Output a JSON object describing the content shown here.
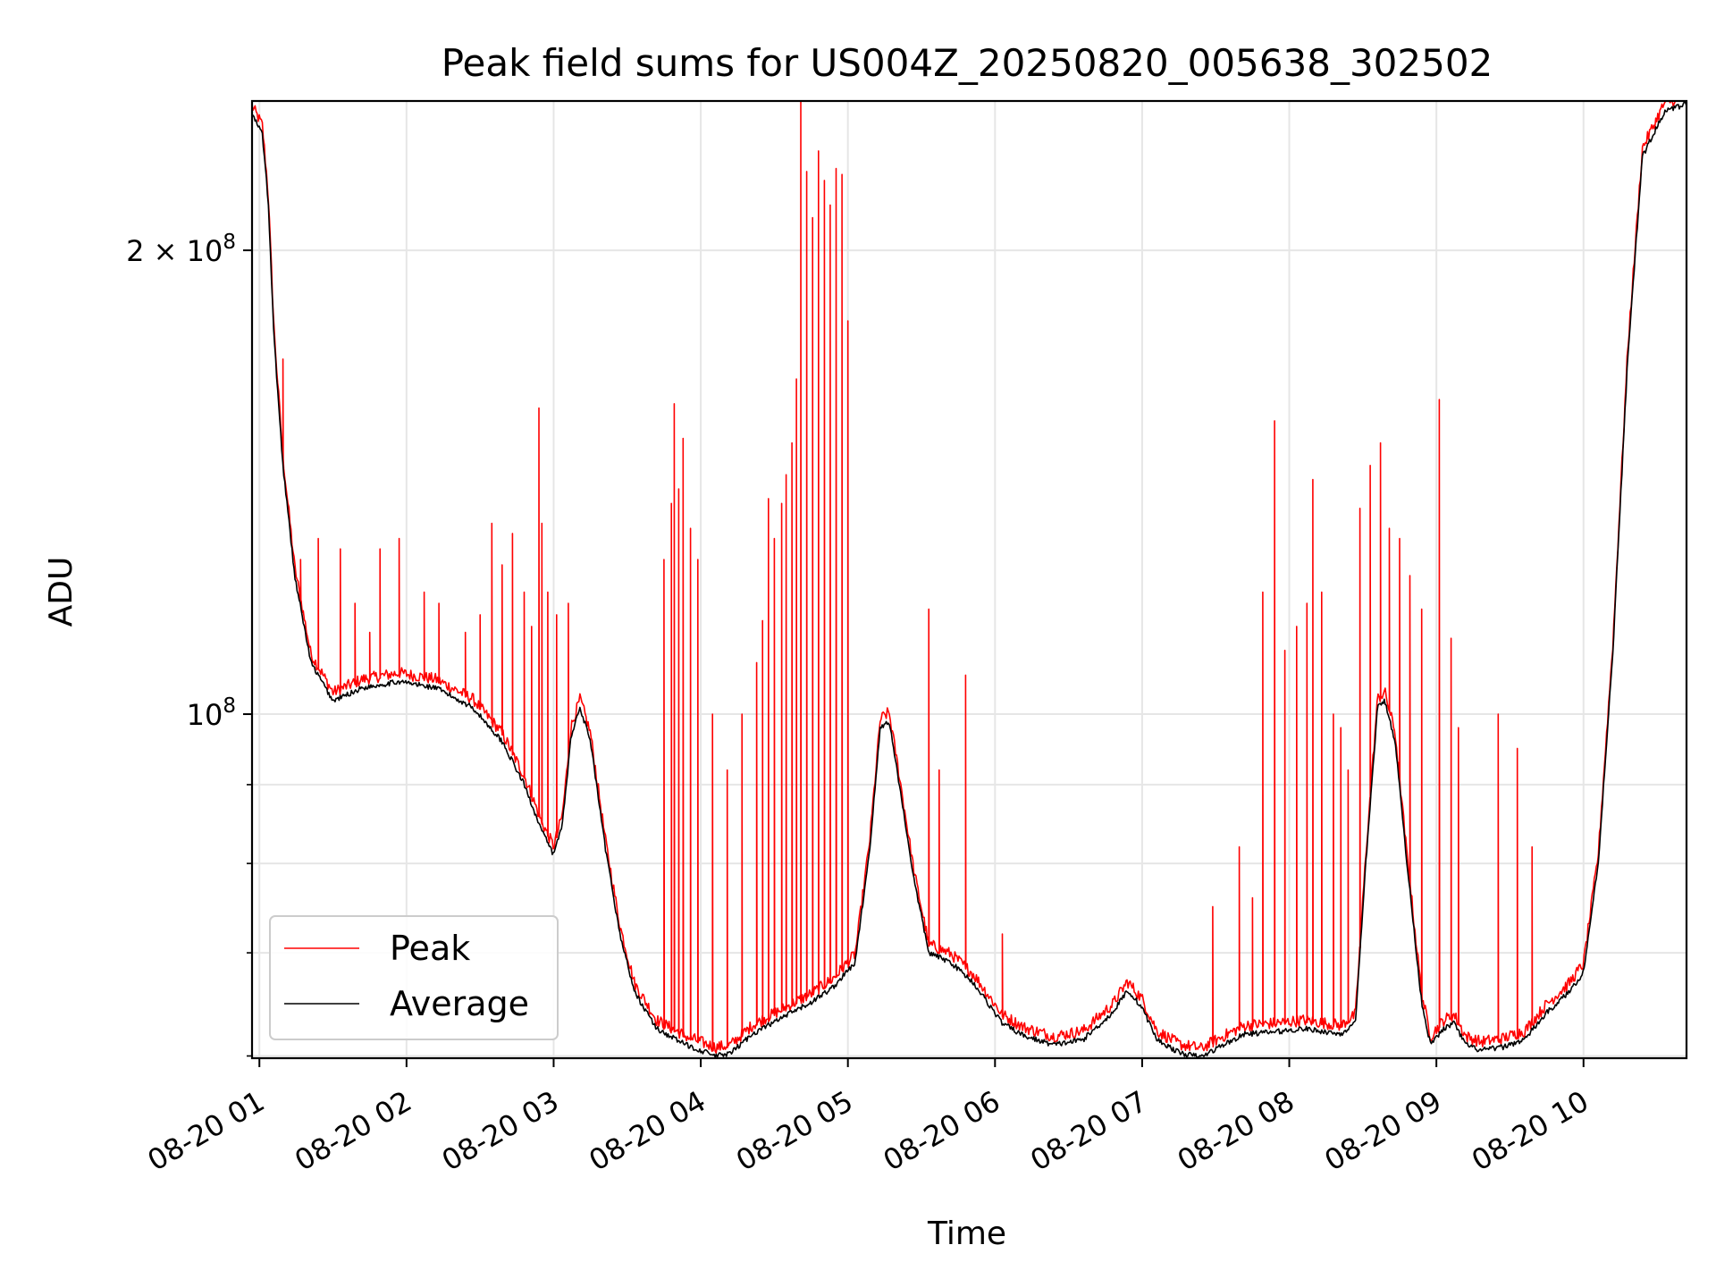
{
  "chart_data": {
    "type": "line",
    "title": "Peak field sums for US004Z_20250820_005638_302502",
    "xlabel": "Time",
    "ylabel": "ADU",
    "yscale": "log",
    "ylim": [
      59800000,
      250000000
    ],
    "xlim_hours": [
      0.95,
      10.7
    ],
    "grid": true,
    "legend_position": "lower-left",
    "x_ticks": [
      {
        "hour": 1,
        "label": "08-20 01"
      },
      {
        "hour": 2,
        "label": "08-20 02"
      },
      {
        "hour": 3,
        "label": "08-20 03"
      },
      {
        "hour": 4,
        "label": "08-20 04"
      },
      {
        "hour": 5,
        "label": "08-20 05"
      },
      {
        "hour": 6,
        "label": "08-20 06"
      },
      {
        "hour": 7,
        "label": "08-20 07"
      },
      {
        "hour": 8,
        "label": "08-20 08"
      },
      {
        "hour": 9,
        "label": "08-20 09"
      },
      {
        "hour": 10,
        "label": "08-20 10"
      }
    ],
    "y_ticks": [
      {
        "value": 100000000,
        "base": "10",
        "exp": "8",
        "coef": ""
      },
      {
        "value": 200000000,
        "base": "10",
        "exp": "8",
        "coef": "2 × "
      }
    ],
    "y_minor_ticks": [
      60000000,
      70000000,
      80000000,
      90000000
    ],
    "series": [
      {
        "name": "Average",
        "color": "#000000",
        "points": [
          [
            0.95,
            245000000
          ],
          [
            1.02,
            238000000
          ],
          [
            1.06,
            215000000
          ],
          [
            1.1,
            175000000
          ],
          [
            1.16,
            145000000
          ],
          [
            1.24,
            123000000
          ],
          [
            1.35,
            108000000
          ],
          [
            1.5,
            102000000
          ],
          [
            1.7,
            104000000
          ],
          [
            1.95,
            105000000
          ],
          [
            2.2,
            104000000
          ],
          [
            2.45,
            101000000
          ],
          [
            2.65,
            96000000
          ],
          [
            2.8,
            90000000
          ],
          [
            2.92,
            84000000
          ],
          [
            3.0,
            81000000
          ],
          [
            3.06,
            85000000
          ],
          [
            3.12,
            97000000
          ],
          [
            3.18,
            101000000
          ],
          [
            3.25,
            96000000
          ],
          [
            3.35,
            82000000
          ],
          [
            3.45,
            72000000
          ],
          [
            3.55,
            66000000
          ],
          [
            3.7,
            62500000
          ],
          [
            3.9,
            61000000
          ],
          [
            4.1,
            60000000
          ],
          [
            4.2,
            60200000
          ],
          [
            4.35,
            62000000
          ],
          [
            4.55,
            63500000
          ],
          [
            4.75,
            65000000
          ],
          [
            4.9,
            66500000
          ],
          [
            5.05,
            69000000
          ],
          [
            5.15,
            82000000
          ],
          [
            5.22,
            98000000
          ],
          [
            5.28,
            99000000
          ],
          [
            5.35,
            90000000
          ],
          [
            5.45,
            78000000
          ],
          [
            5.55,
            70000000
          ],
          [
            5.7,
            69000000
          ],
          [
            5.85,
            67000000
          ],
          [
            6.05,
            63000000
          ],
          [
            6.2,
            61800000
          ],
          [
            6.4,
            61000000
          ],
          [
            6.6,
            61500000
          ],
          [
            6.8,
            64000000
          ],
          [
            6.9,
            66200000
          ],
          [
            7.0,
            64500000
          ],
          [
            7.1,
            61500000
          ],
          [
            7.25,
            60300000
          ],
          [
            7.4,
            59900000
          ],
          [
            7.55,
            61000000
          ],
          [
            7.7,
            62000000
          ],
          [
            7.9,
            62200000
          ],
          [
            8.1,
            62500000
          ],
          [
            8.35,
            62000000
          ],
          [
            8.45,
            63000000
          ],
          [
            8.52,
            80000000
          ],
          [
            8.6,
            101000000
          ],
          [
            8.65,
            102000000
          ],
          [
            8.72,
            96000000
          ],
          [
            8.8,
            80000000
          ],
          [
            8.9,
            65000000
          ],
          [
            8.96,
            61000000
          ],
          [
            9.05,
            62500000
          ],
          [
            9.12,
            63000000
          ],
          [
            9.2,
            61000000
          ],
          [
            9.3,
            60500000
          ],
          [
            9.45,
            60800000
          ],
          [
            9.6,
            61500000
          ],
          [
            9.75,
            64000000
          ],
          [
            9.9,
            66000000
          ],
          [
            10.0,
            68000000
          ],
          [
            10.1,
            80000000
          ],
          [
            10.2,
            110000000
          ],
          [
            10.3,
            170000000
          ],
          [
            10.4,
            230000000
          ],
          [
            10.55,
            246000000
          ],
          [
            10.7,
            249000000
          ]
        ]
      },
      {
        "name": "Peak",
        "color": "#ff0000",
        "spikes": [
          [
            1.16,
            170000000
          ],
          [
            1.28,
            126000000
          ],
          [
            1.4,
            130000000
          ],
          [
            1.55,
            128000000
          ],
          [
            1.65,
            118000000
          ],
          [
            1.75,
            113000000
          ],
          [
            1.82,
            128000000
          ],
          [
            1.95,
            130000000
          ],
          [
            2.12,
            120000000
          ],
          [
            2.22,
            118000000
          ],
          [
            2.4,
            113000000
          ],
          [
            2.5,
            116000000
          ],
          [
            2.58,
            133000000
          ],
          [
            2.65,
            125000000
          ],
          [
            2.72,
            131000000
          ],
          [
            2.8,
            120000000
          ],
          [
            2.85,
            114000000
          ],
          [
            2.9,
            158000000
          ],
          [
            2.92,
            133000000
          ],
          [
            2.96,
            120000000
          ],
          [
            3.02,
            116000000
          ],
          [
            3.1,
            118000000
          ],
          [
            3.75,
            126000000
          ],
          [
            3.8,
            137000000
          ],
          [
            3.82,
            159000000
          ],
          [
            3.85,
            140000000
          ],
          [
            3.88,
            151000000
          ],
          [
            3.93,
            132000000
          ],
          [
            3.98,
            126000000
          ],
          [
            4.08,
            100000000
          ],
          [
            4.18,
            92000000
          ],
          [
            4.28,
            100000000
          ],
          [
            4.38,
            108000000
          ],
          [
            4.42,
            115000000
          ],
          [
            4.46,
            138000000
          ],
          [
            4.5,
            130000000
          ],
          [
            4.55,
            137000000
          ],
          [
            4.58,
            143000000
          ],
          [
            4.62,
            150000000
          ],
          [
            4.65,
            165000000
          ],
          [
            4.68,
            250000000
          ],
          [
            4.72,
            225000000
          ],
          [
            4.76,
            210000000
          ],
          [
            4.8,
            232000000
          ],
          [
            4.84,
            222000000
          ],
          [
            4.88,
            214000000
          ],
          [
            4.92,
            226000000
          ],
          [
            4.96,
            224000000
          ],
          [
            5.0,
            180000000
          ],
          [
            5.55,
            117000000
          ],
          [
            5.62,
            92000000
          ],
          [
            5.8,
            106000000
          ],
          [
            6.05,
            72000000
          ],
          [
            7.48,
            75000000
          ],
          [
            7.66,
            82000000
          ],
          [
            7.75,
            76000000
          ],
          [
            7.82,
            120000000
          ],
          [
            7.9,
            155000000
          ],
          [
            7.97,
            110000000
          ],
          [
            8.05,
            114000000
          ],
          [
            8.12,
            118000000
          ],
          [
            8.16,
            142000000
          ],
          [
            8.22,
            120000000
          ],
          [
            8.3,
            100000000
          ],
          [
            8.35,
            98000000
          ],
          [
            8.4,
            92000000
          ],
          [
            8.48,
            136000000
          ],
          [
            8.55,
            145000000
          ],
          [
            8.62,
            150000000
          ],
          [
            8.68,
            132000000
          ],
          [
            8.75,
            130000000
          ],
          [
            8.82,
            123000000
          ],
          [
            8.9,
            117000000
          ],
          [
            9.02,
            160000000
          ],
          [
            9.1,
            112000000
          ],
          [
            9.15,
            98000000
          ],
          [
            9.42,
            100000000
          ],
          [
            9.55,
            95000000
          ],
          [
            9.65,
            82000000
          ]
        ]
      }
    ]
  }
}
